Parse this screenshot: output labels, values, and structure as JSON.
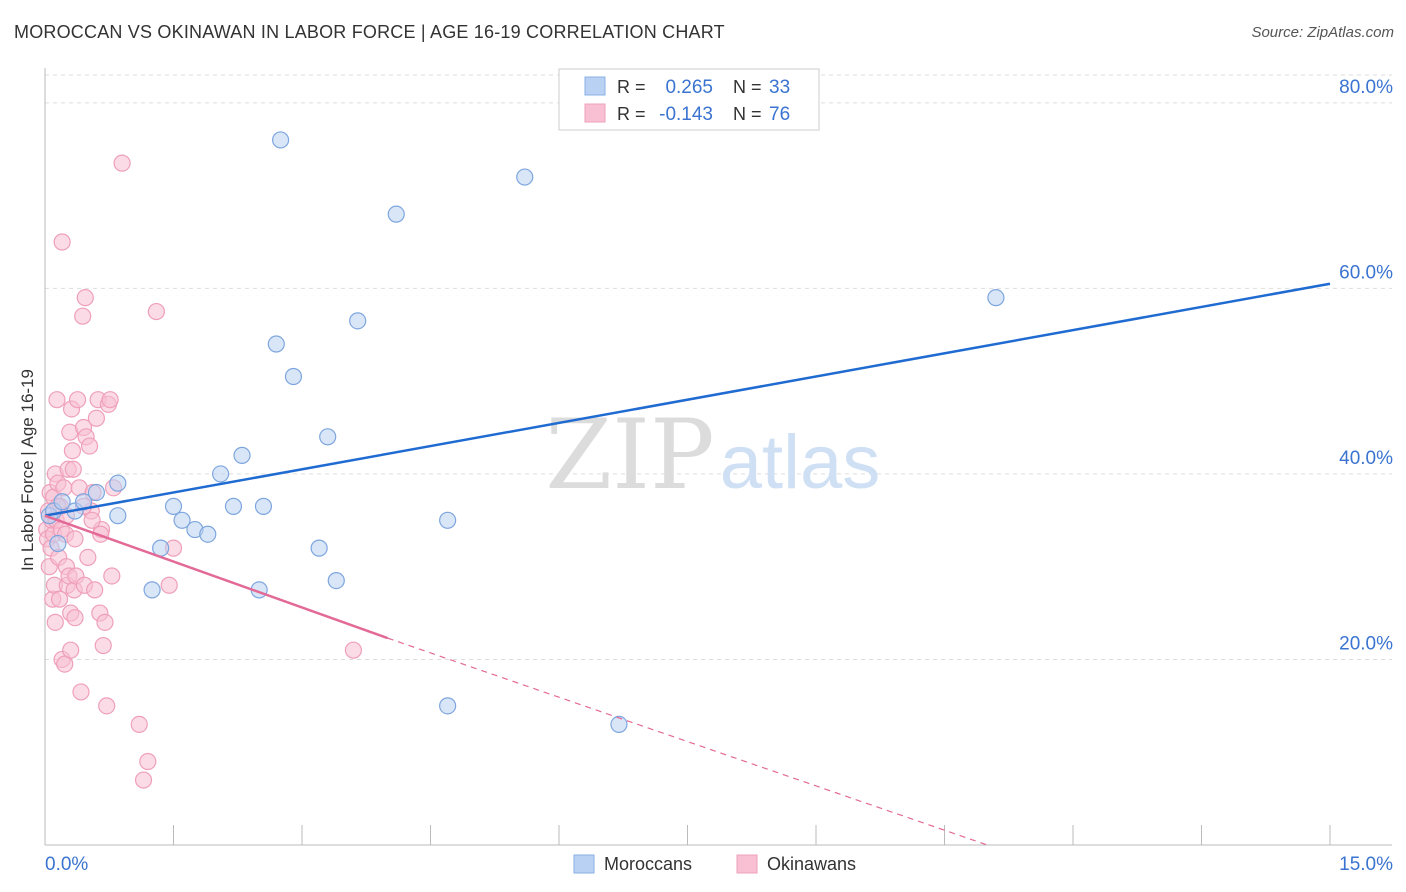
{
  "title": "MOROCCAN VS OKINAWAN IN LABOR FORCE | AGE 16-19 CORRELATION CHART",
  "source": "Source: ZipAtlas.com",
  "watermark": {
    "zip": "ZIP",
    "atlas": "atlas"
  },
  "colors": {
    "blue": "#1f6bd1",
    "blue_fill": "#b9d1f3",
    "blue_text": "#3a74d0",
    "pink": "#e36a96",
    "pink_fill": "#f8c0d2",
    "axis_text": "#3a74d0",
    "grid": "#dddddd",
    "text": "#333333"
  },
  "chart_data": {
    "type": "scatter",
    "title": "MOROCCAN VS OKINAWAN IN LABOR FORCE | AGE 16-19 CORRELATION CHART",
    "xlabel": "",
    "ylabel": "In Labor Force | Age 16-19",
    "xlim": [
      0,
      15
    ],
    "ylim": [
      0,
      83
    ],
    "x_tick_labels": [
      "0.0%",
      "15.0%"
    ],
    "y_ticks": [
      20,
      40,
      60,
      80
    ],
    "y_tick_labels": [
      "20.0%",
      "40.0%",
      "60.0%",
      "80.0%"
    ],
    "grid": true,
    "legend": {
      "position": "top-center",
      "rows": [
        {
          "r_label": "R = ",
          "r_value": "0.265",
          "n_label": "N = ",
          "n_value": "33"
        },
        {
          "r_label": "R = ",
          "r_value": "-0.143",
          "n_label": "N = ",
          "n_value": "76"
        }
      ]
    },
    "series": [
      {
        "name": "Moroccans",
        "points": [
          [
            0.05,
            35.5
          ],
          [
            0.1,
            36.0
          ],
          [
            0.15,
            32.5
          ],
          [
            0.2,
            37.0
          ],
          [
            0.35,
            36.0
          ],
          [
            0.45,
            37.0
          ],
          [
            0.6,
            38.0
          ],
          [
            0.85,
            39.0
          ],
          [
            0.85,
            35.5
          ],
          [
            1.25,
            27.5
          ],
          [
            1.35,
            32.0
          ],
          [
            1.5,
            36.5
          ],
          [
            1.6,
            35.0
          ],
          [
            1.75,
            34.0
          ],
          [
            1.9,
            33.5
          ],
          [
            2.05,
            40.0
          ],
          [
            2.2,
            36.5
          ],
          [
            2.3,
            42.0
          ],
          [
            2.5,
            27.5
          ],
          [
            2.55,
            36.5
          ],
          [
            2.7,
            54.0
          ],
          [
            2.75,
            76.0
          ],
          [
            2.9,
            50.5
          ],
          [
            3.2,
            32.0
          ],
          [
            3.3,
            44.0
          ],
          [
            3.4,
            28.5
          ],
          [
            3.65,
            56.5
          ],
          [
            4.1,
            68.0
          ],
          [
            4.7,
            15.0
          ],
          [
            4.7,
            35.0
          ],
          [
            5.6,
            72.0
          ],
          [
            6.7,
            13.0
          ],
          [
            11.1,
            59.0
          ]
        ],
        "trend": {
          "x0": 0,
          "y0": 35.5,
          "x1": 15,
          "y1": 60.5
        }
      },
      {
        "name": "Okinawans",
        "points": [
          [
            0.02,
            34.0
          ],
          [
            0.03,
            33.0
          ],
          [
            0.04,
            36.0
          ],
          [
            0.05,
            30.0
          ],
          [
            0.06,
            38.0
          ],
          [
            0.07,
            32.0
          ],
          [
            0.08,
            35.0
          ],
          [
            0.09,
            26.5
          ],
          [
            0.1,
            37.5
          ],
          [
            0.1,
            33.5
          ],
          [
            0.11,
            28.0
          ],
          [
            0.12,
            40.0
          ],
          [
            0.12,
            24.0
          ],
          [
            0.13,
            35.0
          ],
          [
            0.14,
            48.0
          ],
          [
            0.15,
            39.0
          ],
          [
            0.16,
            31.0
          ],
          [
            0.17,
            26.5
          ],
          [
            0.18,
            36.5
          ],
          [
            0.19,
            34.0
          ],
          [
            0.2,
            65.0
          ],
          [
            0.2,
            20.0
          ],
          [
            0.22,
            38.5
          ],
          [
            0.23,
            19.5
          ],
          [
            0.24,
            33.5
          ],
          [
            0.25,
            30.0
          ],
          [
            0.26,
            28.0
          ],
          [
            0.27,
            40.5
          ],
          [
            0.28,
            29.0
          ],
          [
            0.29,
            44.5
          ],
          [
            0.3,
            25.0
          ],
          [
            0.3,
            21.0
          ],
          [
            0.31,
            47.0
          ],
          [
            0.32,
            42.5
          ],
          [
            0.33,
            40.5
          ],
          [
            0.34,
            27.5
          ],
          [
            0.35,
            24.5
          ],
          [
            0.36,
            29.0
          ],
          [
            0.38,
            48.0
          ],
          [
            0.4,
            38.5
          ],
          [
            0.42,
            16.5
          ],
          [
            0.44,
            57.0
          ],
          [
            0.45,
            45.0
          ],
          [
            0.46,
            28.0
          ],
          [
            0.47,
            59.0
          ],
          [
            0.48,
            44.0
          ],
          [
            0.5,
            31.0
          ],
          [
            0.52,
            43.0
          ],
          [
            0.54,
            36.0
          ],
          [
            0.56,
            38.0
          ],
          [
            0.58,
            27.5
          ],
          [
            0.6,
            46.0
          ],
          [
            0.62,
            48.0
          ],
          [
            0.64,
            25.0
          ],
          [
            0.66,
            34.0
          ],
          [
            0.68,
            21.5
          ],
          [
            0.7,
            24.0
          ],
          [
            0.72,
            15.0
          ],
          [
            0.74,
            47.5
          ],
          [
            0.76,
            48.0
          ],
          [
            0.78,
            29.0
          ],
          [
            0.8,
            38.5
          ],
          [
            0.9,
            73.5
          ],
          [
            1.1,
            13.0
          ],
          [
            1.15,
            7.0
          ],
          [
            1.2,
            9.0
          ],
          [
            1.3,
            57.5
          ],
          [
            1.45,
            28.0
          ],
          [
            1.5,
            32.0
          ],
          [
            3.6,
            21.0
          ],
          [
            0.15,
            36.5
          ],
          [
            0.25,
            35.5
          ],
          [
            0.35,
            33.0
          ],
          [
            0.45,
            36.5
          ],
          [
            0.55,
            35.0
          ],
          [
            0.65,
            33.5
          ]
        ],
        "trend": {
          "x0": 0,
          "y0": 35.5,
          "x1": 4.0,
          "y1": 22.3
        },
        "trend_extension": {
          "x0": 4.0,
          "y0": 22.3,
          "x1": 11.0,
          "y1": 0.0
        }
      }
    ]
  }
}
